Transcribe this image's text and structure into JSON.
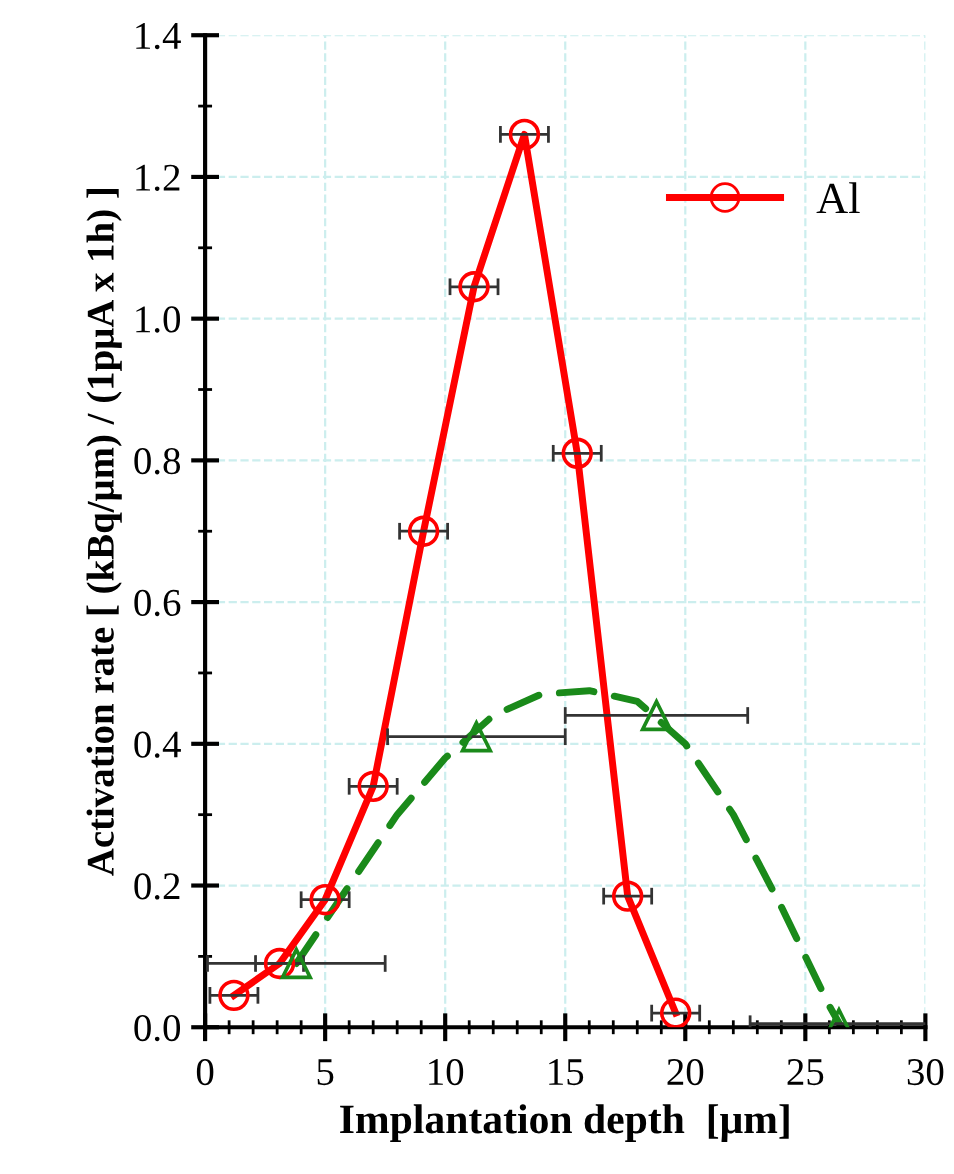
{
  "chart_data": {
    "type": "line",
    "xlabel": "Implantation depth  [μm]",
    "ylabel": "Activation rate [ (kBq/μm) / (1pμA x 1h) ]",
    "xlim": [
      0,
      30
    ],
    "ylim": [
      0,
      1.4
    ],
    "xticks": [
      0,
      5,
      10,
      15,
      20,
      25,
      30
    ],
    "yticks": [
      {
        "value": 0,
        "label": "0.0"
      },
      0.2,
      0.4,
      0.6,
      0.8,
      {
        "value": 1,
        "label": "1.0"
      },
      1.2,
      1.4
    ],
    "grid": true,
    "legend": "top right",
    "series": [
      {
        "name": "Al",
        "color": "#ff0000",
        "marker": "circle",
        "line_style": "solid",
        "x": [
          1.2,
          3.1,
          5.0,
          7.0,
          9.1,
          11.2,
          13.3,
          15.5,
          17.6,
          19.6
        ],
        "values": [
          0.045,
          0.09,
          0.18,
          0.34,
          0.7,
          1.045,
          1.26,
          0.81,
          0.185,
          0.02
        ],
        "xerrors": [
          1.0,
          1.0,
          1.0,
          1.0,
          1.0,
          1.0,
          1.0,
          1.0,
          1.0,
          1.0
        ]
      },
      {
        "type": "scatter",
        "color": "#1a8a1a",
        "marker": "triangle",
        "x": [
          3.8,
          11.3,
          18.8,
          26.4
        ],
        "values": [
          0.09,
          0.41,
          0.44,
          0.005
        ],
        "xerrors": [
          3.7,
          3.7,
          3.8,
          3.7
        ]
      },
      {
        "color": "#1a8a1a",
        "marker": "none",
        "line_style": "dashed",
        "x": [
          3.8,
          6,
          8,
          10,
          12,
          14,
          16,
          18,
          20,
          22,
          24,
          26,
          26.5
        ],
        "values": [
          0.09,
          0.2,
          0.3,
          0.38,
          0.44,
          0.47,
          0.475,
          0.46,
          0.4,
          0.3,
          0.17,
          0.03,
          0.0
        ]
      }
    ]
  }
}
